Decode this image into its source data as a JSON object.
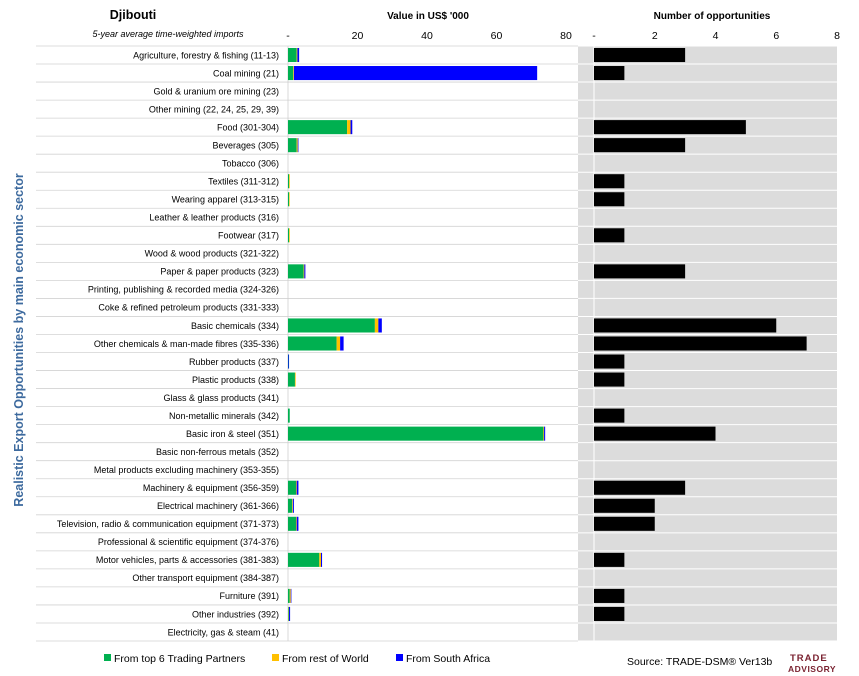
{
  "chart_data": {
    "type": "bar",
    "title": "Djibouti",
    "subtitle": "5-year average time-weighted imports",
    "ylabel": "Realistic Export Opportunities by main economic sector",
    "categories": [
      "Agriculture, forestry & fishing (11-13)",
      "Coal mining (21)",
      "Gold & uranium ore mining (23)",
      "Other mining (22, 24, 25, 29, 39)",
      "Food (301-304)",
      "Beverages (305)",
      "Tobacco (306)",
      "Textiles (311-312)",
      "Wearing apparel (313-315)",
      "Leather & leather products (316)",
      "Footwear (317)",
      "Wood & wood products (321-322)",
      "Paper & paper products (323)",
      "Printing, publishing & recorded media (324-326)",
      "Coke & refined petroleum products (331-333)",
      "Basic chemicals (334)",
      "Other chemicals & man-made fibres (335-336)",
      "Rubber products (337)",
      "Plastic products (338)",
      "Glass & glass products (341)",
      "Non-metallic minerals (342)",
      "Basic iron & steel (351)",
      "Basic non-ferrous metals (352)",
      "Metal products excluding machinery (353-355)",
      "Machinery & equipment (356-359)",
      "Electrical machinery (361-366)",
      "Television, radio & communication equipment (371-373)",
      "Professional & scientific equipment (374-376)",
      "Motor vehicles, parts & accessories (381-383)",
      "Other transport equipment (384-387)",
      "Furniture (391)",
      "Other industries (392)",
      "Electricity, gas & steam (41)"
    ],
    "value_chart": {
      "title": "Value in US$ '000",
      "xlim": [
        0,
        80
      ],
      "ticks": [
        "-",
        "20",
        "40",
        "60",
        "80"
      ],
      "tick_values": [
        0,
        20,
        40,
        60,
        80
      ],
      "series": [
        {
          "name": "From top 6 Trading Partners",
          "color": "#00b050",
          "values": [
            2.5,
            1.5,
            0,
            0,
            17,
            2.5,
            0,
            0.3,
            0.3,
            0,
            0.3,
            0,
            4.5,
            0,
            0,
            25,
            14,
            0.1,
            2,
            0,
            0.5,
            73.5,
            0,
            0,
            2.3,
            1.2,
            2.3,
            0,
            9,
            0,
            0.5,
            0.2,
            0
          ]
        },
        {
          "name": "From rest of World",
          "color": "#ffc000",
          "values": [
            0.2,
            0.2,
            0,
            0,
            1,
            0.3,
            0,
            0.2,
            0.1,
            0,
            0.2,
            0,
            0.2,
            0,
            0,
            1,
            1,
            0,
            0.2,
            0,
            0,
            0.2,
            0,
            0,
            0.2,
            0.2,
            0.2,
            0,
            0.5,
            0,
            0.3,
            0.1,
            0
          ]
        },
        {
          "name": "From South Africa",
          "color": "#0000ff",
          "values": [
            0.5,
            70,
            0,
            0,
            0.5,
            0.2,
            0,
            0,
            0,
            0,
            0,
            0,
            0.3,
            0,
            0,
            1,
            1,
            0.2,
            0,
            0,
            0,
            0.3,
            0,
            0,
            0.5,
            0.3,
            0.5,
            0,
            0.3,
            0,
            0.1,
            0.3,
            0
          ]
        }
      ]
    },
    "opportunities_chart": {
      "title": "Number of opportunities",
      "xlim": [
        0,
        8
      ],
      "ticks": [
        "-",
        "2",
        "4",
        "6",
        "8"
      ],
      "tick_values": [
        0,
        2,
        4,
        6,
        8
      ],
      "color": "#000000",
      "values": [
        3,
        1,
        0,
        0,
        5,
        3,
        0,
        1,
        1,
        0,
        1,
        0,
        3,
        0,
        0,
        6,
        7,
        1,
        1,
        0,
        1,
        4,
        0,
        0,
        3,
        2,
        2,
        0,
        1,
        0,
        1,
        1,
        0
      ]
    },
    "grid": true,
    "legend_position": "bottom"
  },
  "footer": {
    "source": "Source: TRADE-DSM®   Ver13b",
    "logo_line1": "TRADE",
    "logo_line2": "ADVISORY"
  }
}
